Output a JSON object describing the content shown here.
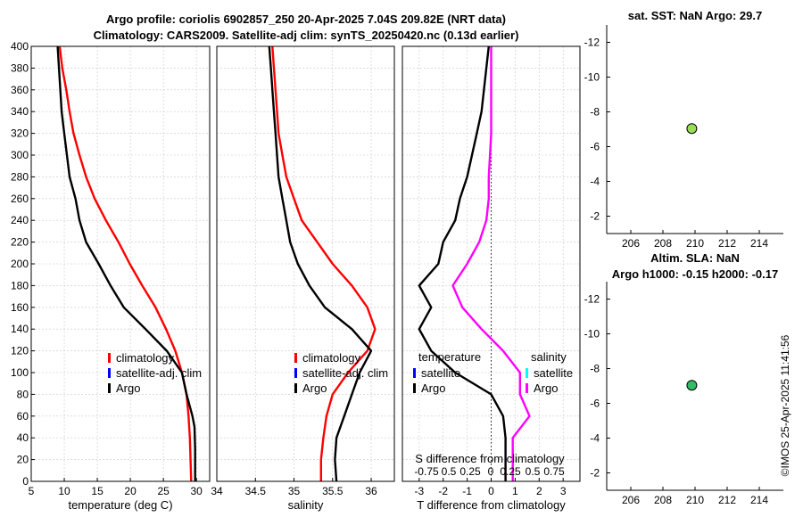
{
  "titles": {
    "main_line1": "Argo profile: coriolis 6902857_250 20-Apr-2025 7.04S 209.82E (NRT data)",
    "main_line2": "Climatology: CARS2009. Satellite-adj clim: synTS_20250420.nc (0.13d earlier)",
    "sst": "sat. SST: NaN Argo: 29.7",
    "sla_line1": "Altim. SLA: NaN",
    "sla_line2": "Argo h1000: -0.15 h2000: -0.17"
  },
  "timestamp": "©IMOS 25-Apr-2025 11:41:56",
  "colors": {
    "climatology": "#ff0000",
    "satellite": "#0000ff",
    "argo": "#000000",
    "salinity_argo": "#ff00ff",
    "salinity_sat": "#00ffff",
    "marker": "#99dd55"
  },
  "chart_data": [
    {
      "id": "temperature",
      "type": "line",
      "xlabel": "temperature (deg C)",
      "ylabel": "",
      "xlim": [
        5,
        32
      ],
      "ylim": [
        400,
        0
      ],
      "xticks": [
        5,
        10,
        15,
        20,
        25,
        30
      ],
      "yticks": [
        0,
        20,
        40,
        60,
        80,
        100,
        120,
        140,
        160,
        180,
        200,
        220,
        240,
        260,
        280,
        300,
        320,
        340,
        360,
        380,
        400
      ],
      "grid": true,
      "legend": {
        "position": "lower-right",
        "entries": [
          "climatology",
          "satellite-adj. clim",
          "Argo"
        ]
      },
      "series": [
        {
          "name": "climatology",
          "color": "#ff0000",
          "points": [
            [
              29.2,
              0
            ],
            [
              29.0,
              40
            ],
            [
              28.8,
              60
            ],
            [
              28.5,
              80
            ],
            [
              27.8,
              100
            ],
            [
              26.8,
              120
            ],
            [
              25.4,
              140
            ],
            [
              23.8,
              160
            ],
            [
              21.8,
              180
            ],
            [
              19.9,
              200
            ],
            [
              18.2,
              220
            ],
            [
              16.3,
              240
            ],
            [
              14.6,
              260
            ],
            [
              13.3,
              280
            ],
            [
              12.3,
              300
            ],
            [
              11.4,
              320
            ],
            [
              10.8,
              340
            ],
            [
              10.3,
              360
            ],
            [
              9.7,
              380
            ],
            [
              9.3,
              400
            ]
          ]
        },
        {
          "name": "Argo",
          "color": "#000000",
          "points": [
            [
              29.8,
              0
            ],
            [
              29.8,
              30
            ],
            [
              29.7,
              50
            ],
            [
              29.4,
              60
            ],
            [
              28.5,
              80
            ],
            [
              27.8,
              100
            ],
            [
              25.5,
              120
            ],
            [
              22.3,
              140
            ],
            [
              19.0,
              160
            ],
            [
              17.0,
              180
            ],
            [
              15.2,
              200
            ],
            [
              13.3,
              220
            ],
            [
              12.3,
              240
            ],
            [
              11.7,
              260
            ],
            [
              10.8,
              280
            ],
            [
              10.4,
              300
            ],
            [
              10.0,
              320
            ],
            [
              9.6,
              340
            ],
            [
              9.4,
              360
            ],
            [
              9.2,
              380
            ],
            [
              9.0,
              400
            ]
          ]
        }
      ]
    },
    {
      "id": "salinity",
      "type": "line",
      "xlabel": "salinity",
      "ylabel": "",
      "xlim": [
        34,
        36.3
      ],
      "ylim": [
        400,
        0
      ],
      "xticks": [
        34,
        34.5,
        35,
        35.5,
        36
      ],
      "grid": true,
      "legend": {
        "position": "lower-right",
        "entries": [
          "climatology",
          "satellite-adj. clim",
          "Argo"
        ]
      },
      "series": [
        {
          "name": "climatology",
          "color": "#ff0000",
          "points": [
            [
              35.35,
              0
            ],
            [
              35.35,
              20
            ],
            [
              35.38,
              40
            ],
            [
              35.42,
              60
            ],
            [
              35.5,
              80
            ],
            [
              35.7,
              100
            ],
            [
              35.95,
              120
            ],
            [
              36.05,
              140
            ],
            [
              35.95,
              160
            ],
            [
              35.75,
              180
            ],
            [
              35.5,
              200
            ],
            [
              35.3,
              220
            ],
            [
              35.1,
              240
            ],
            [
              35.0,
              260
            ],
            [
              34.9,
              280
            ],
            [
              34.85,
              300
            ],
            [
              34.8,
              320
            ],
            [
              34.78,
              340
            ],
            [
              34.76,
              360
            ],
            [
              34.74,
              380
            ],
            [
              34.72,
              400
            ]
          ]
        },
        {
          "name": "Argo",
          "color": "#000000",
          "points": [
            [
              35.55,
              0
            ],
            [
              35.53,
              20
            ],
            [
              35.55,
              40
            ],
            [
              35.65,
              60
            ],
            [
              35.75,
              80
            ],
            [
              35.85,
              100
            ],
            [
              36.0,
              120
            ],
            [
              35.75,
              140
            ],
            [
              35.4,
              160
            ],
            [
              35.2,
              180
            ],
            [
              35.05,
              200
            ],
            [
              34.95,
              220
            ],
            [
              34.9,
              240
            ],
            [
              34.85,
              260
            ],
            [
              34.8,
              280
            ],
            [
              34.78,
              300
            ],
            [
              34.76,
              320
            ],
            [
              34.74,
              340
            ],
            [
              34.72,
              360
            ],
            [
              34.7,
              380
            ],
            [
              34.68,
              400
            ]
          ]
        }
      ]
    },
    {
      "id": "difference",
      "type": "line",
      "xlabel": "T difference from climatology",
      "xlabel_top": "S difference from climatology",
      "xlim": [
        -3.7,
        3.7
      ],
      "ylim": [
        400,
        0
      ],
      "xticks": [
        -3,
        -2,
        -1,
        0,
        1,
        2,
        3
      ],
      "top_ticks": [
        "-0.75",
        "0.5",
        "0.25",
        "0",
        "0.25",
        "0.5",
        "0.75"
      ],
      "grid": true,
      "legend_temperature": {
        "title": "temperature",
        "entries": [
          "satellite",
          "Argo"
        ]
      },
      "legend_salinity": {
        "title": "salinity",
        "entries": [
          "satellite",
          "Argo"
        ]
      },
      "series": [
        {
          "name": "temperature Argo",
          "color": "#000000",
          "points": [
            [
              0.6,
              0
            ],
            [
              0.6,
              40
            ],
            [
              0.5,
              60
            ],
            [
              0.0,
              80
            ],
            [
              -1.5,
              100
            ],
            [
              -2.5,
              120
            ],
            [
              -3.0,
              140
            ],
            [
              -2.5,
              160
            ],
            [
              -3.0,
              180
            ],
            [
              -2.2,
              200
            ],
            [
              -2.0,
              220
            ],
            [
              -1.5,
              240
            ],
            [
              -1.3,
              260
            ],
            [
              -1.0,
              280
            ],
            [
              -0.8,
              300
            ],
            [
              -0.6,
              320
            ],
            [
              -0.4,
              340
            ],
            [
              -0.3,
              360
            ],
            [
              -0.2,
              380
            ],
            [
              -0.1,
              400
            ]
          ]
        },
        {
          "name": "salinity Argo",
          "color": "#ff00ff",
          "points": [
            [
              0.9,
              0
            ],
            [
              0.9,
              40
            ],
            [
              1.6,
              60
            ],
            [
              1.2,
              80
            ],
            [
              1.2,
              100
            ],
            [
              0.5,
              120
            ],
            [
              -0.4,
              140
            ],
            [
              -1.2,
              160
            ],
            [
              -1.6,
              180
            ],
            [
              -1.0,
              200
            ],
            [
              -0.5,
              220
            ],
            [
              -0.2,
              240
            ],
            [
              -0.1,
              260
            ],
            [
              -0.1,
              280
            ],
            [
              -0.05,
              300
            ],
            [
              0.0,
              320
            ],
            [
              0.0,
              340
            ],
            [
              0.0,
              360
            ],
            [
              0.0,
              380
            ],
            [
              0.0,
              400
            ]
          ]
        }
      ]
    },
    {
      "id": "sst",
      "type": "scatter",
      "xlim": [
        204.5,
        215.5
      ],
      "ylim": [
        -13,
        -1
      ],
      "xticks": [
        206,
        208,
        210,
        212,
        214
      ],
      "yticks": [
        -2,
        -4,
        -6,
        -8,
        -10,
        -12
      ],
      "grid": false,
      "points": [
        {
          "x": 209.8,
          "y": -7.04
        }
      ]
    },
    {
      "id": "sla",
      "type": "scatter",
      "xlim": [
        204.5,
        215.5
      ],
      "ylim": [
        -13,
        -1
      ],
      "xticks": [
        206,
        208,
        210,
        212,
        214
      ],
      "yticks": [
        -2,
        -4,
        -6,
        -8,
        -10,
        -12
      ],
      "grid": false,
      "points": [
        {
          "x": 209.8,
          "y": -7.04
        }
      ]
    }
  ]
}
